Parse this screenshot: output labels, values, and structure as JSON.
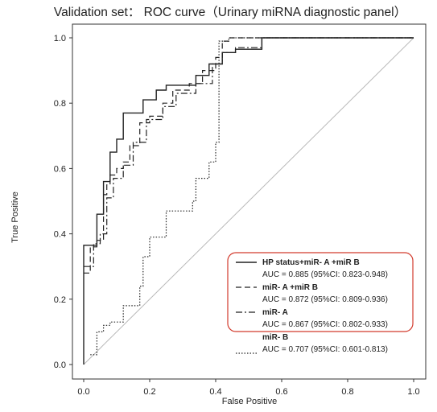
{
  "chart_data": {
    "type": "line",
    "title": "Validation set： ROC curve（Urinary miRNA diagnostic panel）",
    "xlabel": "False Positive",
    "ylabel": "True Positive",
    "xlim": [
      0,
      1
    ],
    "ylim": [
      0,
      1
    ],
    "x_ticks": [
      "0.0",
      "0.2",
      "0.4",
      "0.6",
      "0.8",
      "1.0"
    ],
    "y_ticks": [
      "0.0",
      "0.2",
      "0.4",
      "0.6",
      "0.8",
      "1.0"
    ],
    "grid": false,
    "legend_position": "bottom-right",
    "reference_diagonal": true,
    "series": [
      {
        "name": "HP status+miR-  A        +miR  B",
        "auc_text": "AUC = 0.885 (95%CI: 0.823-0.948)",
        "style": "solid",
        "color": "#222222",
        "x": [
          0,
          0,
          0.04,
          0.04,
          0.06,
          0.06,
          0.08,
          0.08,
          0.1,
          0.1,
          0.12,
          0.12,
          0.18,
          0.18,
          0.22,
          0.22,
          0.25,
          0.25,
          0.34,
          0.34,
          0.38,
          0.38,
          0.42,
          0.42,
          0.46,
          0.46,
          0.54,
          0.54,
          0.78,
          1.0
        ],
        "y": [
          0,
          0.365,
          0.365,
          0.46,
          0.46,
          0.56,
          0.56,
          0.65,
          0.65,
          0.69,
          0.69,
          0.77,
          0.77,
          0.81,
          0.81,
          0.84,
          0.84,
          0.855,
          0.855,
          0.885,
          0.885,
          0.92,
          0.92,
          0.955,
          0.955,
          0.965,
          0.965,
          1.0,
          1.0,
          1.0
        ]
      },
      {
        "name": "miR-    A         +miR  B",
        "auc_text": "AUC = 0.872 (95%CI: 0.809-0.936)",
        "style": "dashed",
        "color": "#222222",
        "x": [
          0,
          0.02,
          0.02,
          0.04,
          0.04,
          0.06,
          0.06,
          0.07,
          0.07,
          0.08,
          0.08,
          0.1,
          0.1,
          0.12,
          0.12,
          0.14,
          0.14,
          0.17,
          0.17,
          0.2,
          0.2,
          0.24,
          0.24,
          0.27,
          0.27,
          0.32,
          0.32,
          0.36,
          0.36,
          0.4,
          0.4,
          0.42,
          0.42,
          0.44,
          0.44,
          0.54,
          0.54,
          0.78,
          1.0
        ],
        "y": [
          0.28,
          0.28,
          0.36,
          0.36,
          0.38,
          0.38,
          0.52,
          0.52,
          0.55,
          0.55,
          0.58,
          0.58,
          0.6,
          0.6,
          0.62,
          0.62,
          0.67,
          0.67,
          0.74,
          0.74,
          0.76,
          0.76,
          0.8,
          0.8,
          0.84,
          0.84,
          0.86,
          0.86,
          0.9,
          0.9,
          0.94,
          0.94,
          0.99,
          0.99,
          1.0,
          1.0,
          1.0,
          1.0,
          1.0
        ]
      },
      {
        "name": "miR-    A",
        "auc_text": "AUC = 0.867 (95%CI: 0.802-0.933)",
        "style": "dash-dot",
        "color": "#222222",
        "x": [
          0,
          0.03,
          0.03,
          0.05,
          0.05,
          0.07,
          0.07,
          0.09,
          0.09,
          0.12,
          0.12,
          0.15,
          0.15,
          0.19,
          0.19,
          0.24,
          0.24,
          0.28,
          0.28,
          0.34,
          0.34,
          0.39,
          0.39,
          0.42,
          0.42,
          0.46,
          0.46,
          0.54,
          0.54,
          0.78,
          1.0
        ],
        "y": [
          0.3,
          0.3,
          0.37,
          0.37,
          0.4,
          0.4,
          0.51,
          0.51,
          0.57,
          0.57,
          0.61,
          0.61,
          0.68,
          0.68,
          0.75,
          0.75,
          0.79,
          0.79,
          0.83,
          0.83,
          0.86,
          0.86,
          0.92,
          0.92,
          0.955,
          0.955,
          0.97,
          0.97,
          1.0,
          1.0,
          1.0
        ]
      },
      {
        "name": "miR-    B",
        "auc_text": "AUC = 0.707 (95%CI: 0.601-0.813)",
        "style": "dotted",
        "color": "#222222",
        "x": [
          0.02,
          0.04,
          0.04,
          0.06,
          0.06,
          0.08,
          0.08,
          0.12,
          0.12,
          0.17,
          0.17,
          0.18,
          0.18,
          0.2,
          0.2,
          0.25,
          0.25,
          0.33,
          0.33,
          0.34,
          0.34,
          0.38,
          0.38,
          0.4,
          0.4,
          0.41,
          0.41,
          0.44,
          0.44,
          0.78,
          1.0
        ],
        "y": [
          0.03,
          0.03,
          0.1,
          0.1,
          0.12,
          0.12,
          0.13,
          0.13,
          0.18,
          0.18,
          0.24,
          0.24,
          0.33,
          0.33,
          0.39,
          0.39,
          0.47,
          0.47,
          0.5,
          0.5,
          0.57,
          0.57,
          0.62,
          0.62,
          0.68,
          0.68,
          0.99,
          0.99,
          1.0,
          1.0,
          1.0
        ]
      }
    ]
  }
}
